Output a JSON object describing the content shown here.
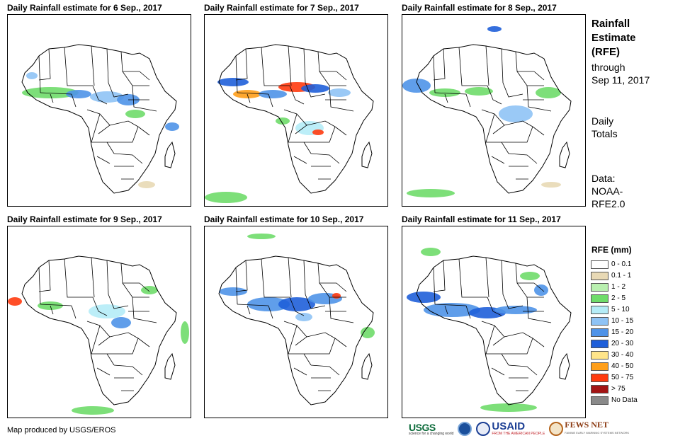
{
  "panels": [
    {
      "title": "Daily Rainfall estimate for 6 Sep., 2017",
      "date": "6 Sep., 2017"
    },
    {
      "title": "Daily Rainfall estimate for 7 Sep., 2017",
      "date": "7 Sep., 2017"
    },
    {
      "title": "Daily Rainfall estimate for 8 Sep., 2017",
      "date": "8 Sep., 2017"
    },
    {
      "title": "Daily Rainfall estimate for 9 Sep., 2017",
      "date": "9 Sep., 2017"
    },
    {
      "title": "Daily Rainfall estimate for 10 Sep., 2017",
      "date": "10 Sep., 2017"
    },
    {
      "title": "Daily Rainfall estimate for 11 Sep., 2017",
      "date": "11 Sep., 2017"
    }
  ],
  "side": {
    "title_lines": [
      "Rainfall",
      "Estimate",
      "(RFE)"
    ],
    "through_lines": [
      "through",
      "Sep 11, 2017"
    ],
    "totals_lines": [
      "Daily",
      "Totals"
    ],
    "data_lines": [
      "Data:",
      "NOAA-",
      "RFE2.0"
    ]
  },
  "legend": {
    "title": "RFE (mm)",
    "items": [
      {
        "label": "0 - 0.1",
        "color": "#ffffff"
      },
      {
        "label": "0.1 - 1",
        "color": "#e8d9b5"
      },
      {
        "label": "1 - 2",
        "color": "#b9f0b0"
      },
      {
        "label": "2 - 5",
        "color": "#6fdc6a"
      },
      {
        "label": "5 - 10",
        "color": "#b5ecf7"
      },
      {
        "label": "10 - 15",
        "color": "#8fc3f5"
      },
      {
        "label": "15 - 20",
        "color": "#4f93e8"
      },
      {
        "label": "20 - 30",
        "color": "#1f5fd9"
      },
      {
        "label": "30 - 40",
        "color": "#ffe58a"
      },
      {
        "label": "40 - 50",
        "color": "#ff9f1a"
      },
      {
        "label": "50 - 75",
        "color": "#ff3b0f"
      },
      {
        "label": "> 75",
        "color": "#a31414"
      },
      {
        "label": "No Data",
        "color": "#8a8a8a"
      }
    ]
  },
  "credit": "Map produced by USGS/EROS",
  "logos": {
    "usgs": {
      "name": "USGS",
      "tagline": "science for a changing world"
    },
    "noaa": {
      "icon": "noaa-seal-icon"
    },
    "usaid": {
      "name": "USAID",
      "tagline": "FROM THE AMERICAN PEOPLE"
    },
    "fews": {
      "name": "FEWS NET",
      "tagline": "FAMINE EARLY WARNING SYSTEMS NETWORK"
    }
  }
}
